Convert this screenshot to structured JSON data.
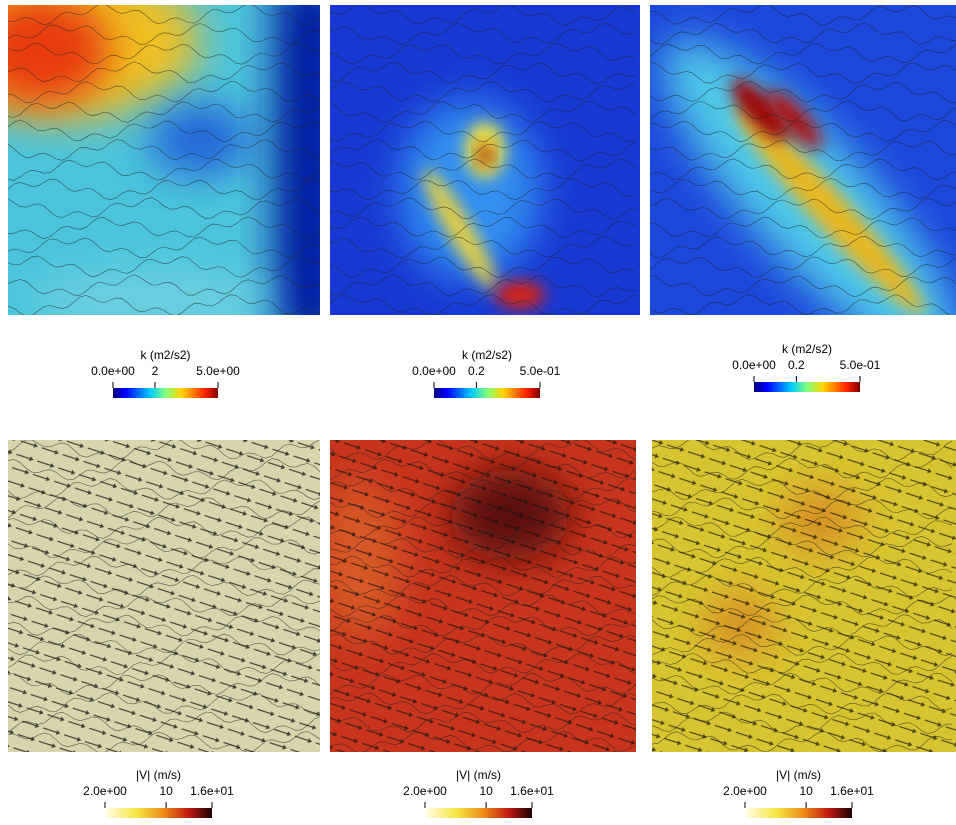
{
  "panels": [
    {
      "colorbar": {
        "title": "k (m2/s2)",
        "range": [
          0,
          5
        ],
        "ticks": [
          {
            "value": 0,
            "label": "0.0e+00"
          },
          2,
          {
            "value": 5,
            "label": "5.0e+00"
          }
        ]
      }
    },
    {
      "colorbar": {
        "title": "k (m2/s2)",
        "range": [
          0,
          0.5
        ],
        "ticks": [
          {
            "value": 0,
            "label": "0.0e+00"
          },
          0.2,
          {
            "value": 0.5,
            "label": "5.0e-01"
          }
        ]
      }
    },
    {
      "colorbar": {
        "title": "k (m2/s2)",
        "range": [
          0,
          0.5
        ],
        "ticks": [
          {
            "value": 0,
            "label": "0.0e+00"
          },
          0.2,
          {
            "value": 0.5,
            "label": "5.0e-01"
          }
        ]
      }
    },
    {
      "colorbar": {
        "title": "|V| (m/s)",
        "range": [
          2,
          16
        ],
        "ticks": [
          {
            "value": 2,
            "label": "2.0e+00"
          },
          10,
          {
            "value": 16,
            "label": "1.6e+01"
          }
        ]
      }
    },
    {
      "colorbar": {
        "title": "|V| (m/s)",
        "range": [
          2,
          16
        ],
        "ticks": [
          {
            "value": 2,
            "label": "2.0e+00"
          },
          10,
          {
            "value": 16,
            "label": "1.6e+01"
          }
        ]
      }
    },
    {
      "colorbar": {
        "title": "|V| (m/s)",
        "range": [
          2,
          16
        ],
        "ticks": [
          {
            "value": 2,
            "label": "2.0e+00"
          },
          10,
          {
            "value": 16,
            "label": "1.6e+01"
          }
        ]
      }
    }
  ]
}
